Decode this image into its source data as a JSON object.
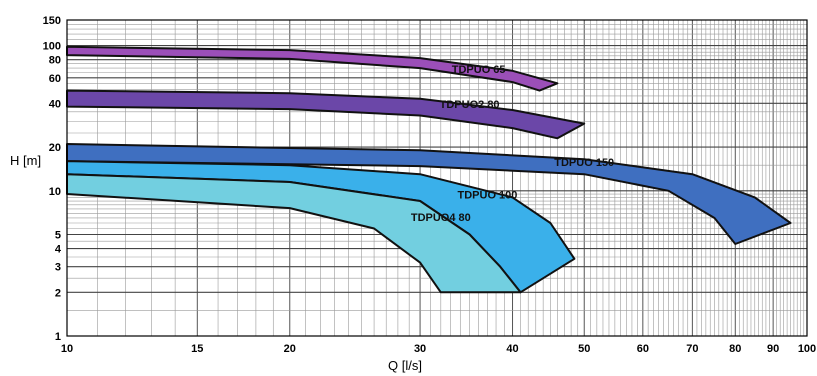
{
  "chart_data": {
    "type": "area",
    "xlabel": "Q [l/s]",
    "ylabel": "H [m]",
    "x_scale": "log",
    "y_scale": "log",
    "xlim": [
      10,
      100
    ],
    "ylim": [
      1,
      150
    ],
    "x_ticks": [
      10,
      15,
      20,
      30,
      40,
      50,
      60,
      70,
      80,
      90,
      100
    ],
    "y_ticks": [
      1,
      2,
      3,
      4,
      5,
      10,
      20,
      40,
      60,
      80,
      100,
      150
    ],
    "grid": true,
    "series": [
      {
        "name": "TDPUO 65",
        "color": "#9b4fb8",
        "upper": [
          [
            10,
            98
          ],
          [
            20,
            93
          ],
          [
            30,
            82
          ],
          [
            40,
            67
          ],
          [
            46,
            55
          ]
        ],
        "lower": [
          [
            10,
            86
          ],
          [
            20,
            81
          ],
          [
            30,
            70
          ],
          [
            40,
            56
          ],
          [
            43.5,
            49
          ]
        ]
      },
      {
        "name": "TDPUO2 80",
        "color": "#6b47a8",
        "upper": [
          [
            10,
            49
          ],
          [
            20,
            47
          ],
          [
            30,
            43
          ],
          [
            40,
            36
          ],
          [
            50,
            29
          ]
        ],
        "lower": [
          [
            10,
            38
          ],
          [
            20,
            36.5
          ],
          [
            30,
            33
          ],
          [
            40,
            27
          ],
          [
            46,
            23
          ]
        ]
      },
      {
        "name": "TDPUO 150",
        "color": "#3f6fc0",
        "upper": [
          [
            10,
            21
          ],
          [
            30,
            19
          ],
          [
            50,
            16.5
          ],
          [
            70,
            13
          ],
          [
            85,
            9
          ],
          [
            95,
            6
          ]
        ],
        "lower": [
          [
            10,
            16
          ],
          [
            30,
            14.8
          ],
          [
            50,
            13
          ],
          [
            65,
            10
          ],
          [
            75,
            6.5
          ],
          [
            80,
            4.3
          ]
        ]
      },
      {
        "name": "TDPUO 100",
        "color": "#3ab0ea",
        "upper": [
          [
            10,
            16
          ],
          [
            20,
            15
          ],
          [
            30,
            13
          ],
          [
            40,
            9
          ],
          [
            45,
            6
          ],
          [
            48.5,
            3.4
          ]
        ],
        "lower": [
          [
            10,
            13
          ],
          [
            20,
            11.5
          ],
          [
            30,
            8.5
          ],
          [
            35,
            5
          ],
          [
            38.5,
            3
          ],
          [
            41,
            2
          ]
        ]
      },
      {
        "name": "TDPUO4 80",
        "color": "#72cfe0",
        "upper": [
          [
            10,
            13
          ],
          [
            20,
            11.5
          ],
          [
            30,
            8.5
          ],
          [
            35,
            5
          ],
          [
            38.5,
            3
          ],
          [
            41,
            2
          ]
        ],
        "lower": [
          [
            10,
            9.5
          ],
          [
            20,
            7.6
          ],
          [
            26,
            5.5
          ],
          [
            30,
            3.2
          ],
          [
            32,
            2
          ]
        ]
      }
    ],
    "annotations": [
      {
        "text": "TDPUO 65",
        "x": 36,
        "y": 68
      },
      {
        "text": "TDPUO2 80",
        "x": 35,
        "y": 39
      },
      {
        "text": "TDPUO  150",
        "x": 50,
        "y": 15.5
      },
      {
        "text": "TDPUO 100",
        "x": 37,
        "y": 9.3
      },
      {
        "text": "TDPUO4 80",
        "x": 32,
        "y": 6.5
      }
    ]
  }
}
